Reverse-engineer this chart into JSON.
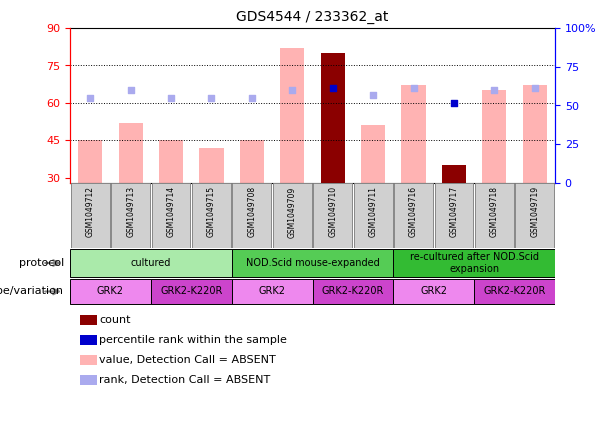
{
  "title": "GDS4544 / 233362_at",
  "samples": [
    "GSM1049712",
    "GSM1049713",
    "GSM1049714",
    "GSM1049715",
    "GSM1049708",
    "GSM1049709",
    "GSM1049710",
    "GSM1049711",
    "GSM1049716",
    "GSM1049717",
    "GSM1049718",
    "GSM1049719"
  ],
  "bar_values": [
    45,
    52,
    45,
    42,
    45,
    82,
    80,
    51,
    67,
    35,
    65,
    67
  ],
  "bar_colors": [
    "#ffb3b3",
    "#ffb3b3",
    "#ffb3b3",
    "#ffb3b3",
    "#ffb3b3",
    "#ffb3b3",
    "#8b0000",
    "#ffb3b3",
    "#ffb3b3",
    "#8b0000",
    "#ffb3b3",
    "#ffb3b3"
  ],
  "rank_dots": [
    62,
    65,
    62,
    62,
    62,
    65,
    66,
    63,
    66,
    60,
    65,
    66
  ],
  "rank_dot_colors": [
    "#aaaaee",
    "#aaaaee",
    "#aaaaee",
    "#aaaaee",
    "#aaaaee",
    "#aaaaee",
    "#0000cc",
    "#aaaaee",
    "#aaaaee",
    "#0000cc",
    "#aaaaee",
    "#aaaaee"
  ],
  "ylim_left": [
    28,
    90
  ],
  "ylim_right": [
    0,
    100
  ],
  "yticks_left": [
    30,
    45,
    60,
    75,
    90
  ],
  "yticks_right": [
    0,
    25,
    50,
    75,
    100
  ],
  "ytick_labels_left": [
    "30",
    "45",
    "60",
    "75",
    "90"
  ],
  "ytick_labels_right": [
    "0",
    "25",
    "50",
    "75",
    "100%"
  ],
  "hlines": [
    45,
    60,
    75
  ],
  "protocol_groups": [
    {
      "label": "cultured",
      "start": 0,
      "end": 4,
      "color": "#aaeaaa"
    },
    {
      "label": "NOD.Scid mouse-expanded",
      "start": 4,
      "end": 8,
      "color": "#55cc55"
    },
    {
      "label": "re-cultured after NOD.Scid\nexpansion",
      "start": 8,
      "end": 12,
      "color": "#33bb33"
    }
  ],
  "genotype_groups": [
    {
      "label": "GRK2",
      "start": 0,
      "end": 2,
      "color": "#ee88ee"
    },
    {
      "label": "GRK2-K220R",
      "start": 2,
      "end": 4,
      "color": "#cc44cc"
    },
    {
      "label": "GRK2",
      "start": 4,
      "end": 6,
      "color": "#ee88ee"
    },
    {
      "label": "GRK2-K220R",
      "start": 6,
      "end": 8,
      "color": "#cc44cc"
    },
    {
      "label": "GRK2",
      "start": 8,
      "end": 10,
      "color": "#ee88ee"
    },
    {
      "label": "GRK2-K220R",
      "start": 10,
      "end": 12,
      "color": "#cc44cc"
    }
  ],
  "row_labels": [
    "protocol",
    "genotype/variation"
  ],
  "legend_items": [
    {
      "color": "#8b0000",
      "label": "count"
    },
    {
      "color": "#0000cc",
      "label": "percentile rank within the sample"
    },
    {
      "color": "#ffb3b3",
      "label": "value, Detection Call = ABSENT"
    },
    {
      "color": "#aaaaee",
      "label": "rank, Detection Call = ABSENT"
    }
  ],
  "background_color": "#ffffff",
  "plot_bg_color": "#ffffff",
  "sample_box_color": "#d0d0d0",
  "sample_box_border": "#888888"
}
